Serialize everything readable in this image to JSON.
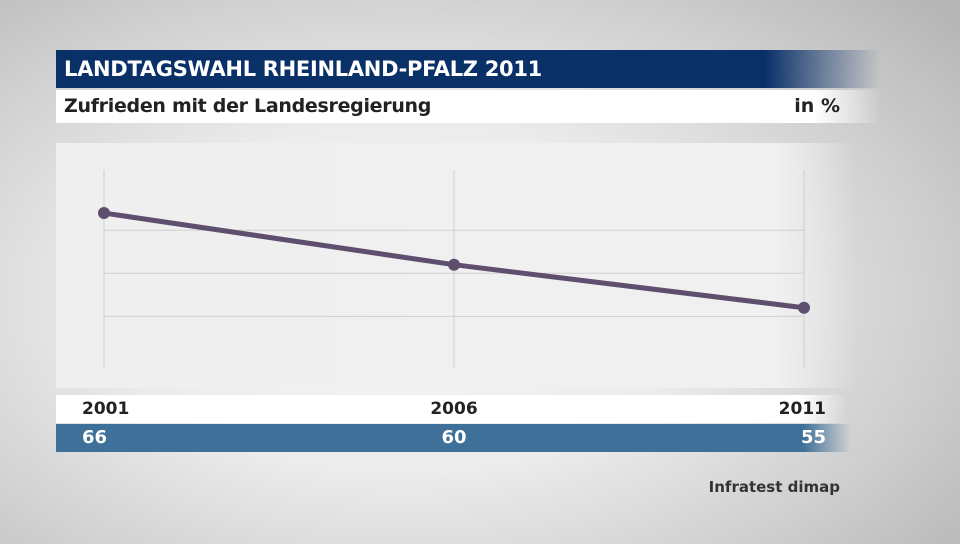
{
  "header": {
    "title": "LANDTAGSWAHL RHEINLAND-PFALZ 2011",
    "subtitle": "Zufrieden mit der Landesregierung",
    "unit": "in %"
  },
  "source": "Infratest dimap",
  "colors": {
    "title_bg": "#0a3068",
    "line": "#5e4f6e",
    "value_row_bg": "#3f7099"
  },
  "chart_data": {
    "type": "line",
    "categories": [
      "2001",
      "2006",
      "2011"
    ],
    "values": [
      66,
      60,
      55
    ],
    "value_labels": [
      "66",
      "60",
      "55"
    ],
    "ylim": [
      48,
      71
    ],
    "grid": true
  }
}
